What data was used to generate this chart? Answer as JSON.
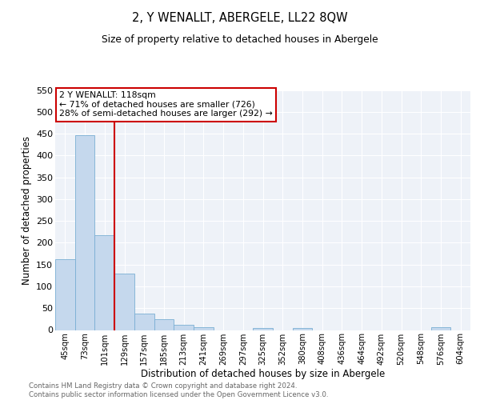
{
  "title": "2, Y WENALLT, ABERGELE, LL22 8QW",
  "subtitle": "Size of property relative to detached houses in Abergele",
  "xlabel": "Distribution of detached houses by size in Abergele",
  "ylabel": "Number of detached properties",
  "bar_color": "#c5d8ed",
  "bar_edge_color": "#7aafd4",
  "background_color": "#eef2f8",
  "grid_color": "#ffffff",
  "categories": [
    "45sqm",
    "73sqm",
    "101sqm",
    "129sqm",
    "157sqm",
    "185sqm",
    "213sqm",
    "241sqm",
    "269sqm",
    "297sqm",
    "325sqm",
    "352sqm",
    "380sqm",
    "408sqm",
    "436sqm",
    "464sqm",
    "492sqm",
    "520sqm",
    "548sqm",
    "576sqm",
    "604sqm"
  ],
  "values": [
    163,
    446,
    218,
    129,
    37,
    25,
    12,
    6,
    0,
    0,
    5,
    0,
    4,
    0,
    0,
    0,
    0,
    0,
    0,
    6,
    0
  ],
  "ylim": [
    0,
    550
  ],
  "yticks": [
    0,
    50,
    100,
    150,
    200,
    250,
    300,
    350,
    400,
    450,
    500,
    550
  ],
  "property_line_index": 2,
  "property_label": "2 Y WENALLT: 118sqm",
  "annotation_line1": "← 71% of detached houses are smaller (726)",
  "annotation_line2": "28% of semi-detached houses are larger (292) →",
  "annotation_box_color": "#ffffff",
  "annotation_box_edge": "#cc0000",
  "footer_line1": "Contains HM Land Registry data © Crown copyright and database right 2024.",
  "footer_line2": "Contains public sector information licensed under the Open Government Licence v3.0."
}
